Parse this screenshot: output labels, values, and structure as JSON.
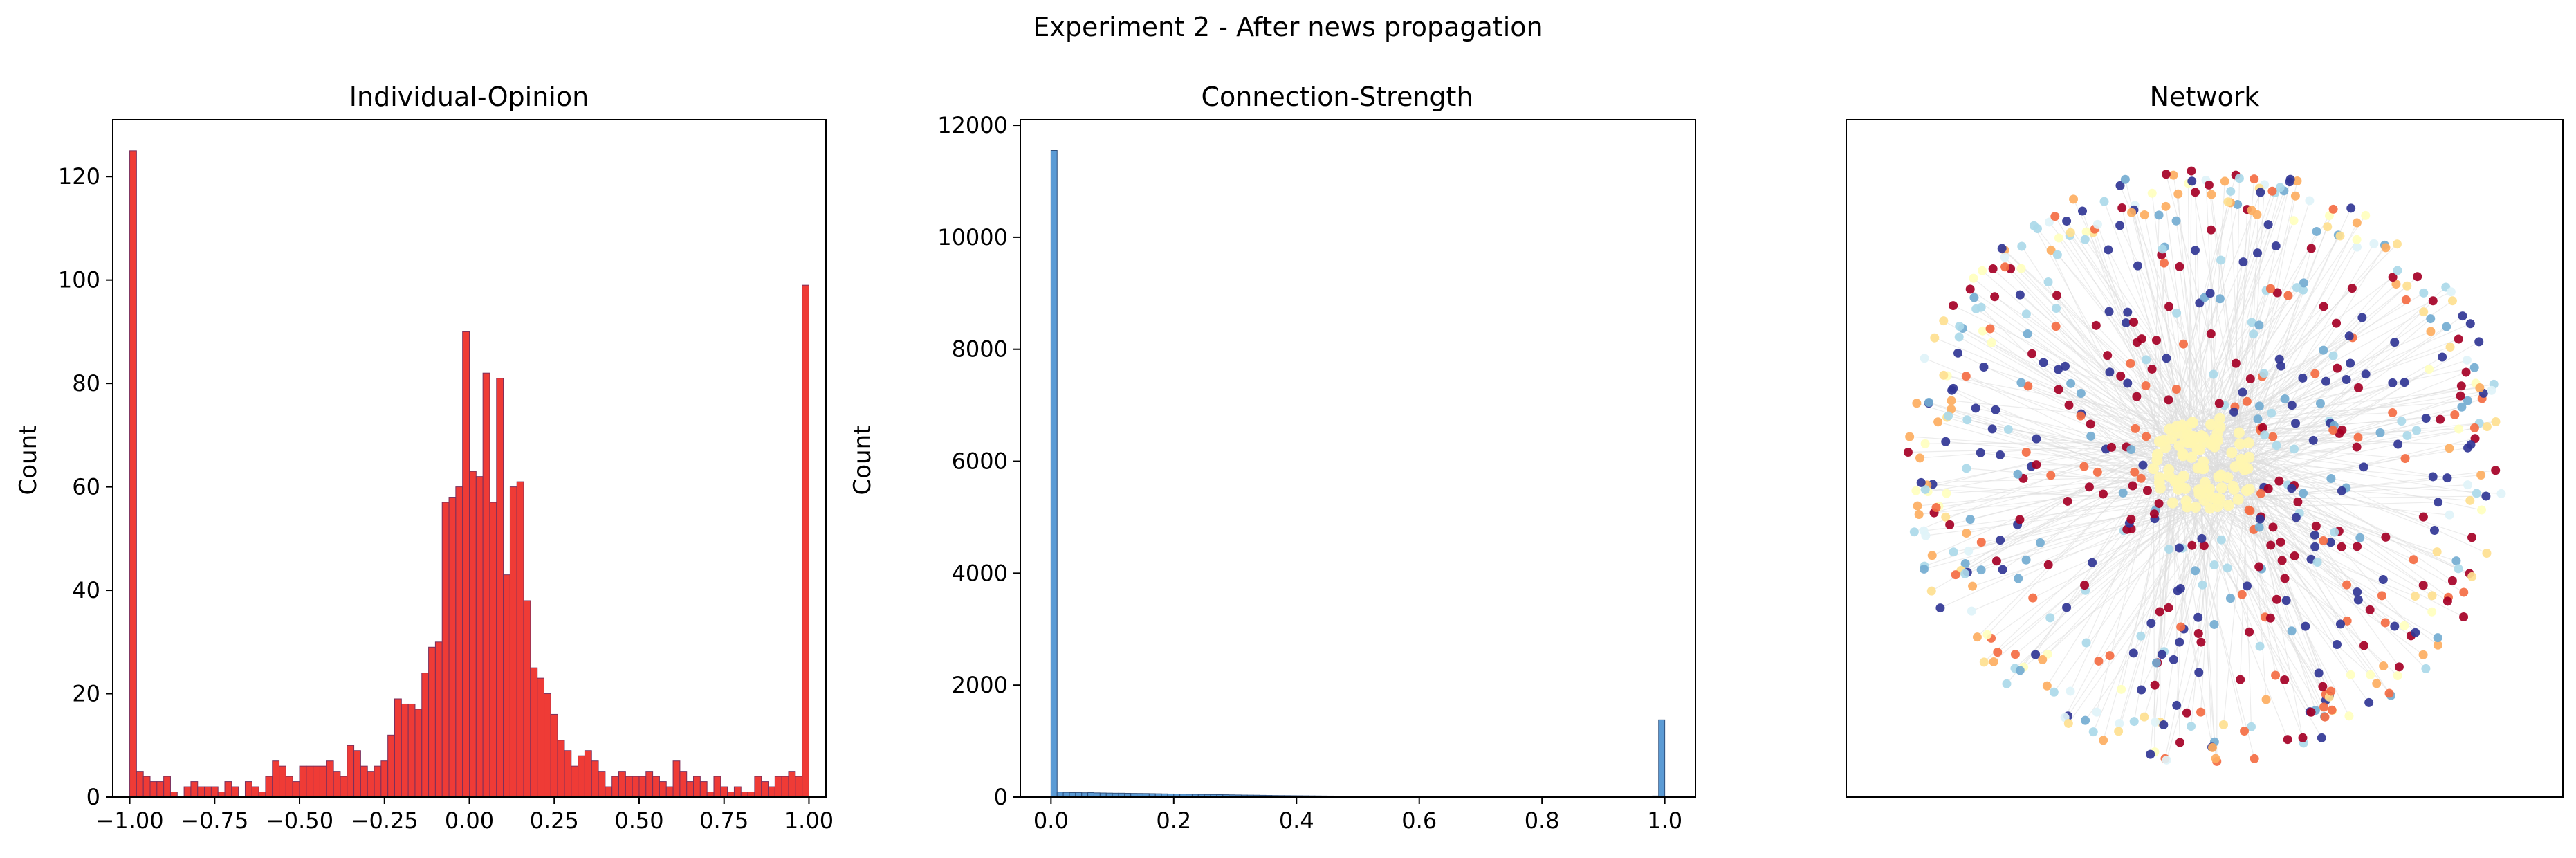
{
  "figure": {
    "suptitle": "Experiment 2 - After news propagation"
  },
  "chart_data": [
    {
      "type": "bar",
      "title": "Individual-Opinion",
      "xlabel": "",
      "ylabel": "Count",
      "xlim": [
        -1.05,
        1.05
      ],
      "ylim": [
        0,
        131
      ],
      "xticks": [
        -1.0,
        -0.75,
        -0.5,
        -0.25,
        0.0,
        0.25,
        0.5,
        0.75,
        1.0
      ],
      "xtick_labels": [
        "−1.00",
        "−0.75",
        "−0.50",
        "−0.25",
        "0.00",
        "0.25",
        "0.50",
        "0.75",
        "1.00"
      ],
      "yticks": [
        0,
        20,
        40,
        60,
        80,
        100,
        120
      ],
      "bin_start": -1.0,
      "bin_width": 0.02,
      "values": [
        125,
        5,
        4,
        3,
        3,
        4,
        1,
        0,
        2,
        3,
        2,
        2,
        2,
        1,
        3,
        2,
        0,
        3,
        2,
        1,
        4,
        7,
        6,
        4,
        3,
        6,
        6,
        6,
        6,
        7,
        5,
        4,
        10,
        9,
        6,
        5,
        6,
        7,
        12,
        19,
        18,
        18,
        17,
        24,
        29,
        30,
        57,
        58,
        60,
        90,
        63,
        62,
        82,
        57,
        81,
        43,
        60,
        61,
        38,
        25,
        23,
        20,
        16,
        11,
        9,
        6,
        8,
        9,
        7,
        5,
        2,
        4,
        5,
        4,
        4,
        4,
        5,
        4,
        3,
        2,
        7,
        5,
        3,
        4,
        3,
        1,
        4,
        2,
        1,
        2,
        1,
        1,
        4,
        3,
        2,
        4,
        4,
        5,
        4,
        99
      ],
      "colors": {
        "bar": "#ef3b36",
        "edge": "#7a2f5c"
      }
    },
    {
      "type": "bar",
      "title": "Connection-Strength",
      "xlabel": "",
      "ylabel": "Count",
      "xlim": [
        -0.05,
        1.05
      ],
      "ylim": [
        0,
        12100
      ],
      "xticks": [
        0.0,
        0.2,
        0.4,
        0.6,
        0.8,
        1.0
      ],
      "xtick_labels": [
        "0.0",
        "0.2",
        "0.4",
        "0.6",
        "0.8",
        "1.0"
      ],
      "yticks": [
        0,
        2000,
        4000,
        6000,
        8000,
        10000,
        12000
      ],
      "bin_start": 0.0,
      "bin_width": 0.01,
      "values": [
        11550,
        90,
        85,
        80,
        82,
        78,
        80,
        76,
        74,
        72,
        70,
        70,
        68,
        66,
        65,
        64,
        62,
        60,
        58,
        56,
        55,
        54,
        52,
        50,
        48,
        46,
        45,
        44,
        42,
        40,
        38,
        36,
        35,
        34,
        32,
        30,
        28,
        27,
        26,
        25,
        24,
        23,
        22,
        21,
        20,
        19,
        18,
        17,
        16,
        15,
        14,
        13,
        12,
        12,
        11,
        10,
        10,
        9,
        9,
        8,
        8,
        7,
        7,
        6,
        6,
        5,
        5,
        5,
        4,
        4,
        4,
        4,
        3,
        3,
        3,
        3,
        3,
        2,
        2,
        2,
        2,
        2,
        2,
        2,
        2,
        2,
        1,
        1,
        1,
        1,
        1,
        1,
        1,
        1,
        1,
        1,
        1,
        1,
        20,
        1380
      ],
      "colors": {
        "bar": "#5b9bd5",
        "edge": "#2e4f7c"
      }
    },
    {
      "type": "scatter",
      "title": "Network",
      "description_colors": [
        "#313695",
        "#a50026",
        "#f46d43",
        "#fdae61",
        "#fee090",
        "#ffffbf",
        "#abd9e9",
        "#74add1",
        "#e0f3f8"
      ],
      "edge_color": "#dcdcdc",
      "hub_color": "#fff5b0"
    }
  ]
}
